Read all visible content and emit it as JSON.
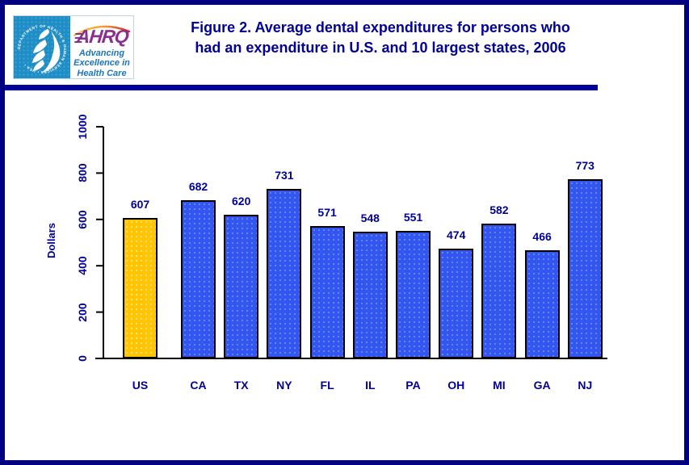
{
  "header": {
    "logo": {
      "seal_text": "DEPARTMENT OF HEALTH & HUMAN SERVICES • USA •",
      "acronym": "AHRQ",
      "tagline_lines": [
        "Advancing",
        "Excellence in",
        "Health Care"
      ]
    },
    "title_lines": [
      "Figure 2. Average dental expenditures for persons who",
      "had an expenditure in U.S. and 10 largest states, 2006"
    ]
  },
  "chart_data": {
    "type": "bar",
    "title": "Figure 2. Average dental expenditures for persons who had an expenditure in U.S. and 10 largest states, 2006",
    "categories": [
      "US",
      "CA",
      "TX",
      "NY",
      "FL",
      "IL",
      "PA",
      "OH",
      "MI",
      "GA",
      "NJ"
    ],
    "values": [
      607,
      682,
      620,
      731,
      571,
      548,
      551,
      474,
      582,
      466,
      773
    ],
    "xlabel": "",
    "ylabel": "Dollars",
    "ylim": [
      0,
      1000
    ],
    "yticks": [
      0,
      200,
      400,
      600,
      800,
      1000
    ],
    "grid": false,
    "legend": "none",
    "value_labels_shown": true,
    "highlight_category": "US"
  },
  "colors": {
    "frame_border": "#000080",
    "divider": "#000099",
    "title_text": "#000099",
    "label_text": "#000099",
    "axis": "#000000",
    "bar_us": "#ffc403",
    "bar_state": "#3355f0",
    "bar_outline": "#000000",
    "hhs_panel_blue": "#1f8dc6",
    "ahrq_purple": "#8b2f8f",
    "tagline_blue": "#1b75bc",
    "swoosh_orange": "#f59a32",
    "swoosh_red": "#d22128"
  }
}
